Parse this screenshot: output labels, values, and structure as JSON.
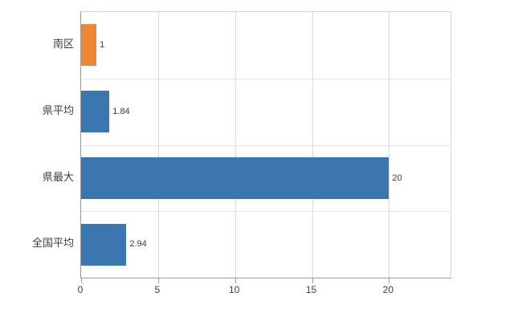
{
  "chart_data": {
    "type": "bar",
    "orientation": "horizontal",
    "title": "",
    "xlabel": "",
    "ylabel": "",
    "categories": [
      "南区",
      "県平均",
      "県最大",
      "全国平均"
    ],
    "values": [
      1,
      1.84,
      20,
      2.94
    ],
    "value_labels": [
      "1",
      "1.84",
      "20",
      "2.94"
    ],
    "bar_colors": [
      "#ED8733",
      "#3A76AF",
      "#3A76AF",
      "#3A76AF"
    ],
    "xlim": [
      0,
      24
    ],
    "xticks": [
      0,
      5,
      10,
      15,
      20
    ],
    "grid": true,
    "legend": false
  },
  "colors": {
    "background": "#ffffff",
    "grid": "#d9d9d9",
    "grid_h": "#e6e6e6",
    "axis": "#9b9b9b",
    "text": "#3c3c3c"
  }
}
